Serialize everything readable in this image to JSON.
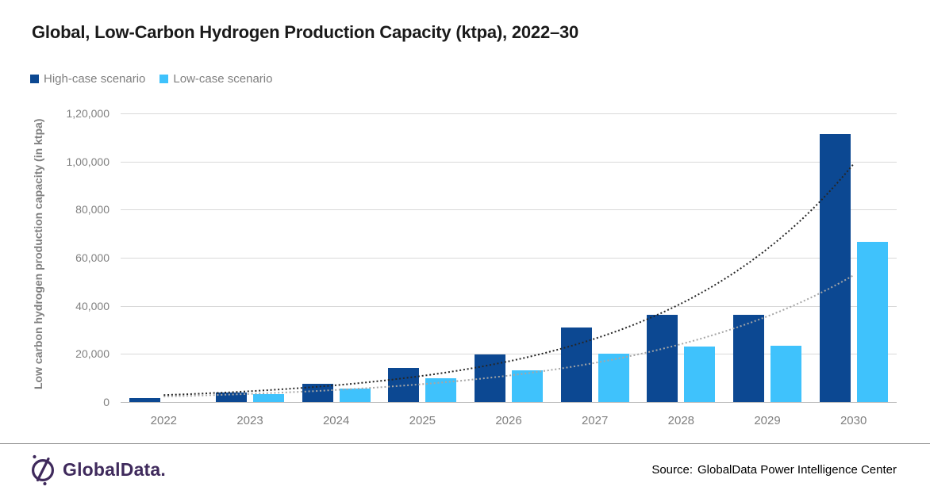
{
  "chart_data": {
    "type": "bar",
    "title": "Global, Low-Carbon Hydrogen Production Capacity (ktpa), 2022–30",
    "ylabel": "Low carbon hydrogen production capacity (in ktpa)",
    "xlabel": "",
    "categories": [
      "2022",
      "2023",
      "2024",
      "2025",
      "2026",
      "2027",
      "2028",
      "2029",
      "2030"
    ],
    "series": [
      {
        "name": "High-case scenario",
        "color": "#0c4892",
        "values": [
          1600,
          3900,
          7500,
          14300,
          19700,
          31100,
          36100,
          36400,
          111500
        ]
      },
      {
        "name": "Low-case scenario",
        "color": "#3fc2fc",
        "values": [
          0,
          3200,
          5600,
          9800,
          13200,
          20200,
          23100,
          23500,
          66500
        ]
      }
    ],
    "trendlines": [
      {
        "series": "High-case scenario",
        "shape": "exponential",
        "style": "dotted",
        "color": "#262626",
        "start_value": 2900,
        "end_value": 99000
      },
      {
        "series": "Low-case scenario",
        "shape": "exponential",
        "style": "dotted",
        "color": "#a6a6a6",
        "start_value": 2300,
        "end_value": 52700
      }
    ],
    "ylim": [
      0,
      120000
    ],
    "ytick_labels": [
      "0",
      "20,000",
      "40,000",
      "60,000",
      "80,000",
      "1,00,000",
      "1,20,000"
    ],
    "grid": true,
    "legend_position": "top-left"
  },
  "footer": {
    "logo_text": "GlobalData.",
    "source_label": "Source:",
    "source_text": "GlobalData Power Intelligence Center"
  },
  "colors": {
    "high_series": "#0c4892",
    "low_series": "#3fc2fc",
    "trend_high": "#262626",
    "trend_low": "#a6a6a6",
    "logo_purple": "#3f2a5c",
    "gridline": "#d9d9d9",
    "axis_text": "#808080"
  }
}
